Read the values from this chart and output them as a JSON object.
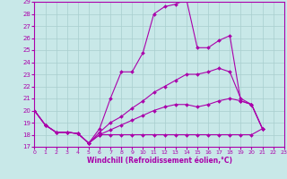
{
  "background_color": "#c8e8e8",
  "grid_color": "#a8cece",
  "line_color": "#aa00aa",
  "markersize": 2.0,
  "linewidth": 0.8,
  "xlabel": "Windchill (Refroidissement éolien,°C)",
  "xlim": [
    0,
    23
  ],
  "ylim": [
    17,
    29
  ],
  "yticks": [
    17,
    18,
    19,
    20,
    21,
    22,
    23,
    24,
    25,
    26,
    27,
    28,
    29
  ],
  "xticks": [
    0,
    1,
    2,
    3,
    4,
    5,
    6,
    7,
    8,
    9,
    10,
    11,
    12,
    13,
    14,
    15,
    16,
    17,
    18,
    19,
    20,
    21,
    22,
    23
  ],
  "series": [
    [
      20.0,
      18.8,
      18.2,
      18.2,
      18.1,
      17.3,
      18.5,
      21.0,
      23.2,
      23.2,
      24.8,
      28.0,
      28.6,
      28.8,
      29.2,
      25.2,
      25.2,
      25.8,
      26.2,
      20.8,
      20.5,
      18.5
    ],
    [
      20.0,
      18.8,
      18.2,
      18.2,
      18.1,
      17.3,
      18.2,
      19.0,
      19.5,
      20.2,
      20.8,
      21.5,
      22.0,
      22.5,
      23.0,
      23.0,
      23.2,
      23.5,
      23.2,
      21.0,
      20.5,
      18.5
    ],
    [
      20.0,
      18.8,
      18.2,
      18.2,
      18.1,
      17.3,
      18.0,
      18.4,
      18.8,
      19.2,
      19.6,
      20.0,
      20.3,
      20.5,
      20.5,
      20.3,
      20.5,
      20.8,
      21.0,
      20.8,
      20.5,
      18.5
    ],
    [
      20.0,
      18.8,
      18.2,
      18.2,
      18.1,
      17.3,
      18.0,
      18.0,
      18.0,
      18.0,
      18.0,
      18.0,
      18.0,
      18.0,
      18.0,
      18.0,
      18.0,
      18.0,
      18.0,
      18.0,
      18.0,
      18.5
    ]
  ]
}
